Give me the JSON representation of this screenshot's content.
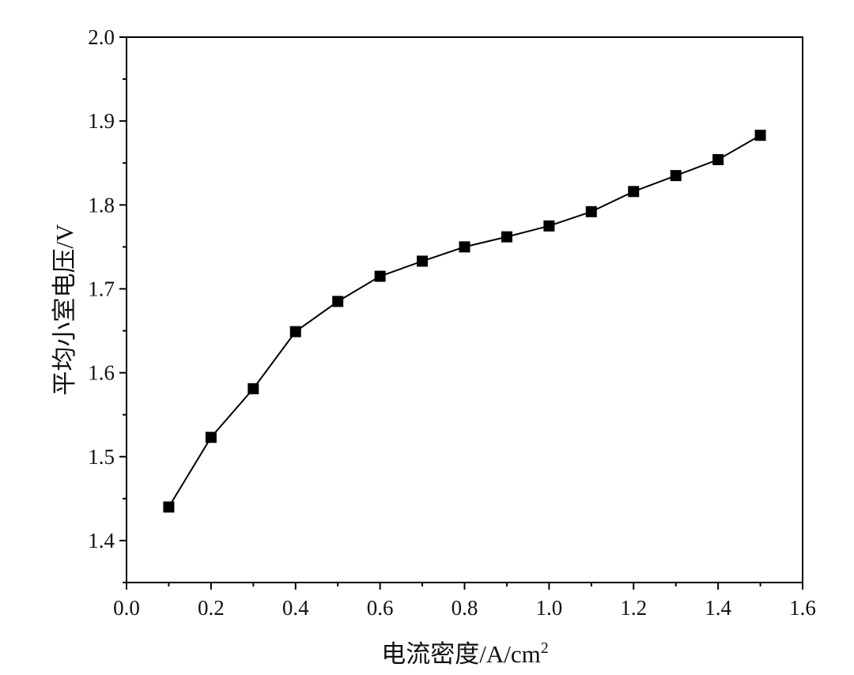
{
  "chart_data": {
    "type": "line",
    "title": "",
    "xlabel": "电流密度/A/cm",
    "xlabel_superscript": "2",
    "ylabel": "平均小室电压/V",
    "xlim": [
      0.0,
      1.6
    ],
    "ylim": [
      1.35,
      2.0
    ],
    "x_ticks": [
      "0.0",
      "0.2",
      "0.4",
      "0.6",
      "0.8",
      "1.0",
      "1.2",
      "1.4",
      "1.6"
    ],
    "y_ticks": [
      "1.4",
      "1.5",
      "1.6",
      "1.7",
      "1.8",
      "1.9",
      "2.0"
    ],
    "grid": false,
    "series": [
      {
        "marker": "square",
        "color": "#000000",
        "x": [
          0.1,
          0.2,
          0.3,
          0.4,
          0.5,
          0.6,
          0.7,
          0.8,
          0.9,
          1.0,
          1.1,
          1.2,
          1.3,
          1.4,
          1.5
        ],
        "y": [
          1.44,
          1.523,
          1.581,
          1.649,
          1.685,
          1.715,
          1.733,
          1.75,
          1.762,
          1.775,
          1.792,
          1.816,
          1.835,
          1.854,
          1.883
        ]
      }
    ]
  }
}
